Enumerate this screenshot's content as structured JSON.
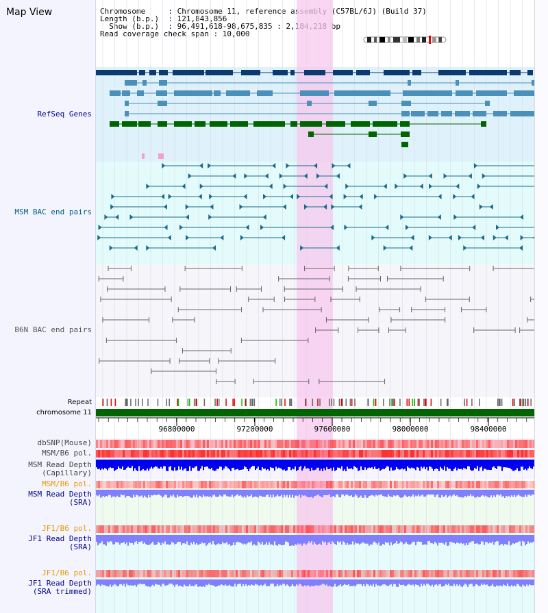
{
  "view_title": "Map View",
  "info": {
    "line1": "Chromosome     : Chromosome 11, reference assembly (C57BL/6J) (Build 37)",
    "line2": "Length (b.p.)  : 121,843,856",
    "line3": "  Show (b.p.)  : 96,491,618-98,675,835 : 2,184,218 bp",
    "line4": "Read coverage check span : 10,000"
  },
  "tracks": {
    "refseq": "RefSeq Genes",
    "msm_bac": "MSM BAC end pairs",
    "b6n_bac": "B6N BAC end pairs",
    "repeat": "Repeat",
    "chromosome": "chromosome 11",
    "dbsnp": "dbSNP(Mouse)",
    "msm_b6_pol": "MSM/B6 pol.",
    "msm_depth_cap_1": "MSM Read Depth",
    "msm_depth_cap_2": "(Capillary)",
    "msm_b6_pol_2": "MSM/B6 pol.",
    "msm_depth_sra_1": "MSM Read Depth",
    "msm_depth_sra_2": "(SRA)",
    "jf1_b6_pol": "JF1/B6 pol.",
    "jf1_depth_sra_1": "JF1 Read Depth",
    "jf1_depth_sra_2": "(SRA)",
    "jf1_b6_pol_2": "JF1/B6 pol.",
    "jf1_depth_trim_1": "JF1 Read Depth",
    "jf1_depth_trim_2": "(SRA trimmed)"
  },
  "axis": {
    "ticks": [
      "96800000",
      "97200000",
      "97600000",
      "98000000",
      "98400000"
    ]
  },
  "colors": {
    "refseq_dark": "#0b3a6e",
    "refseq_mid": "#4a90b8",
    "refseq_green": "#006400",
    "msm_bac": "#1a6a8a",
    "b6n_bac": "#666666",
    "highlight": "#f7c8ee",
    "depth_blue": "#0000ee",
    "depth_light": "#8080ff",
    "pol_red": "#ff3030"
  }
}
